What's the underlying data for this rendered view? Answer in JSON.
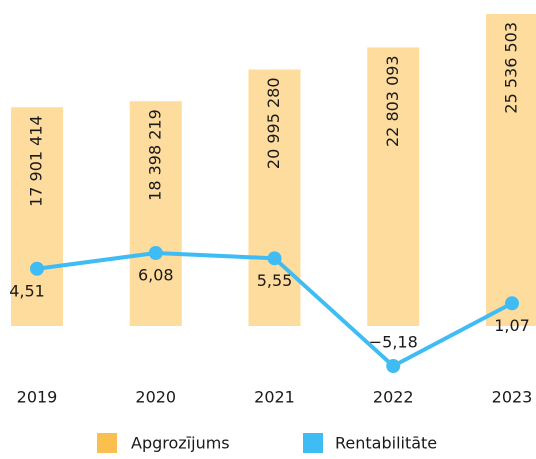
{
  "chart_data": {
    "type": "bar-line",
    "categories": [
      "2019",
      "2020",
      "2021",
      "2022",
      "2023"
    ],
    "series": [
      {
        "name": "Apgrozījums",
        "type": "bar",
        "color": "#fbbf4f",
        "values": [
          17901414,
          18398219,
          20995280,
          22803093,
          25536503
        ],
        "value_labels": [
          "17 901 414",
          "18 398 219",
          "20 995 280",
          "22 803 093",
          "25 536 503"
        ]
      },
      {
        "name": "Rentabilitāte",
        "type": "line",
        "color": "#3fbcf4",
        "values": [
          4.51,
          6.08,
          5.55,
          -5.18,
          1.07
        ],
        "value_labels": [
          "4,51",
          "6,08",
          "5,55",
          "−5,18",
          "1,07"
        ]
      }
    ],
    "legend": "bottom"
  }
}
